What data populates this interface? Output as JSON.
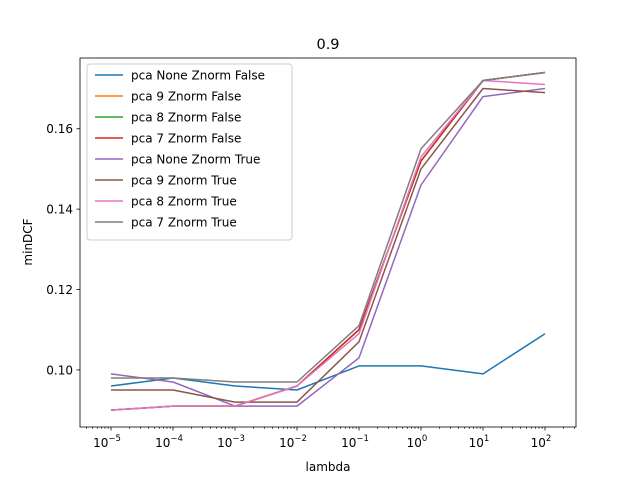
{
  "chart_data": {
    "type": "line",
    "title": "0.9",
    "xlabel": "lambda",
    "ylabel": "minDCF",
    "xscale": "log",
    "x": [
      1e-05,
      0.0001,
      0.001,
      0.01,
      0.1,
      1,
      10,
      100
    ],
    "xtick_labels": [
      {
        "base": "10",
        "exp": "−5"
      },
      {
        "base": "10",
        "exp": "−4"
      },
      {
        "base": "10",
        "exp": "−3"
      },
      {
        "base": "10",
        "exp": "−2"
      },
      {
        "base": "10",
        "exp": "−1"
      },
      {
        "base": "10",
        "exp": "0"
      },
      {
        "base": "10",
        "exp": "1"
      },
      {
        "base": "10",
        "exp": "2"
      }
    ],
    "yticks": [
      0.1,
      0.12,
      0.14,
      0.16
    ],
    "ytick_labels": [
      "0.10",
      "0.12",
      "0.14",
      "0.16"
    ],
    "ylim": [
      0.0858,
      0.1776
    ],
    "grid": false,
    "legend_position": "top-left",
    "series": [
      {
        "name": "pca None Znorm False",
        "color": "#1f77b4",
        "values": [
          0.096,
          0.098,
          0.096,
          0.095,
          0.101,
          0.101,
          0.099,
          0.109
        ]
      },
      {
        "name": "pca 9 Znorm False",
        "color": "#ff7f0e",
        "values": [
          0.09,
          0.091,
          0.091,
          0.096,
          0.11,
          0.152,
          0.172,
          0.174
        ]
      },
      {
        "name": "pca 8 Znorm False",
        "color": "#2ca02c",
        "values": [
          0.09,
          0.091,
          0.091,
          0.096,
          0.11,
          0.152,
          0.172,
          0.174
        ]
      },
      {
        "name": "pca 7 Znorm False",
        "color": "#d62728",
        "values": [
          0.09,
          0.091,
          0.091,
          0.096,
          0.11,
          0.152,
          0.172,
          0.174
        ]
      },
      {
        "name": "pca None Znorm True",
        "color": "#9467bd",
        "values": [
          0.099,
          0.097,
          0.091,
          0.091,
          0.103,
          0.146,
          0.168,
          0.17
        ]
      },
      {
        "name": "pca 9 Znorm True",
        "color": "#8c564b",
        "values": [
          0.095,
          0.095,
          0.092,
          0.092,
          0.107,
          0.15,
          0.17,
          0.169
        ]
      },
      {
        "name": "pca 8 Znorm True",
        "color": "#e377c2",
        "values": [
          0.09,
          0.091,
          0.091,
          0.096,
          0.109,
          0.153,
          0.172,
          0.171
        ]
      },
      {
        "name": "pca 7 Znorm True",
        "color": "#7f7f7f",
        "values": [
          0.098,
          0.098,
          0.097,
          0.097,
          0.111,
          0.155,
          0.172,
          0.174
        ]
      }
    ]
  }
}
